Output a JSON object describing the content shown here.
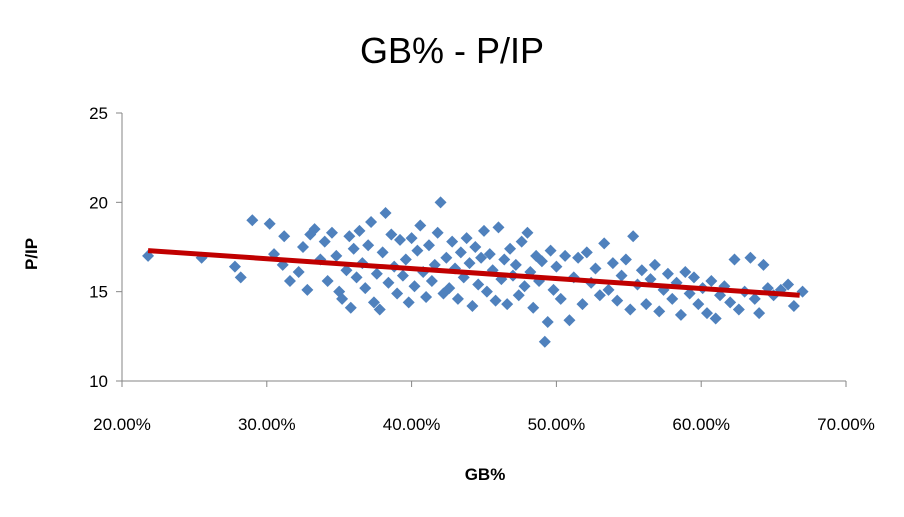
{
  "chart_data": {
    "type": "scatter",
    "title": "GB% - P/IP",
    "xlabel": "GB%",
    "ylabel": "P/IP",
    "xlim": [
      0.2,
      0.7
    ],
    "ylim": [
      10,
      25
    ],
    "x_ticks": [
      0.2,
      0.3,
      0.4,
      0.5,
      0.6,
      0.7
    ],
    "x_tick_labels": [
      "20.00%",
      "30.00%",
      "40.00%",
      "50.00%",
      "60.00%",
      "70.00%"
    ],
    "y_ticks": [
      10,
      15,
      20,
      25
    ],
    "y_tick_labels": [
      "10",
      "15",
      "20",
      "25"
    ],
    "grid": false,
    "legend": "none",
    "colors": {
      "marker": "#4F81BD",
      "trendline": "#C00000"
    },
    "series": [
      {
        "marker": "diamond",
        "points": [
          [
            0.218,
            17.0
          ],
          [
            0.255,
            16.9
          ],
          [
            0.278,
            16.4
          ],
          [
            0.282,
            15.8
          ],
          [
            0.29,
            19.0
          ],
          [
            0.302,
            18.8
          ],
          [
            0.305,
            17.1
          ],
          [
            0.311,
            16.5
          ],
          [
            0.312,
            18.1
          ],
          [
            0.316,
            15.6
          ],
          [
            0.322,
            16.1
          ],
          [
            0.325,
            17.5
          ],
          [
            0.328,
            15.1
          ],
          [
            0.33,
            18.2
          ],
          [
            0.333,
            18.5
          ],
          [
            0.337,
            16.8
          ],
          [
            0.34,
            17.8
          ],
          [
            0.342,
            15.6
          ],
          [
            0.345,
            18.3
          ],
          [
            0.348,
            17.0
          ],
          [
            0.35,
            15.0
          ],
          [
            0.352,
            14.6
          ],
          [
            0.355,
            16.2
          ],
          [
            0.357,
            18.1
          ],
          [
            0.358,
            14.1
          ],
          [
            0.36,
            17.4
          ],
          [
            0.362,
            15.8
          ],
          [
            0.364,
            18.4
          ],
          [
            0.366,
            16.6
          ],
          [
            0.368,
            15.2
          ],
          [
            0.37,
            17.6
          ],
          [
            0.372,
            18.9
          ],
          [
            0.374,
            14.4
          ],
          [
            0.376,
            16.0
          ],
          [
            0.378,
            14.0
          ],
          [
            0.38,
            17.2
          ],
          [
            0.382,
            19.4
          ],
          [
            0.384,
            15.5
          ],
          [
            0.386,
            18.2
          ],
          [
            0.388,
            16.4
          ],
          [
            0.39,
            14.9
          ],
          [
            0.392,
            17.9
          ],
          [
            0.394,
            15.9
          ],
          [
            0.396,
            16.8
          ],
          [
            0.398,
            14.4
          ],
          [
            0.4,
            18.0
          ],
          [
            0.402,
            15.3
          ],
          [
            0.404,
            17.3
          ],
          [
            0.406,
            18.7
          ],
          [
            0.408,
            16.1
          ],
          [
            0.41,
            14.7
          ],
          [
            0.412,
            17.6
          ],
          [
            0.414,
            15.6
          ],
          [
            0.416,
            16.5
          ],
          [
            0.418,
            18.3
          ],
          [
            0.42,
            20.0
          ],
          [
            0.422,
            14.9
          ],
          [
            0.424,
            16.9
          ],
          [
            0.426,
            15.2
          ],
          [
            0.428,
            17.8
          ],
          [
            0.43,
            16.3
          ],
          [
            0.432,
            14.6
          ],
          [
            0.434,
            17.2
          ],
          [
            0.436,
            15.8
          ],
          [
            0.438,
            18.0
          ],
          [
            0.44,
            16.6
          ],
          [
            0.442,
            14.2
          ],
          [
            0.444,
            17.5
          ],
          [
            0.446,
            15.4
          ],
          [
            0.448,
            16.9
          ],
          [
            0.45,
            18.4
          ],
          [
            0.452,
            15.0
          ],
          [
            0.454,
            17.1
          ],
          [
            0.456,
            16.2
          ],
          [
            0.458,
            14.5
          ],
          [
            0.46,
            18.6
          ],
          [
            0.462,
            15.7
          ],
          [
            0.464,
            16.8
          ],
          [
            0.466,
            14.3
          ],
          [
            0.468,
            17.4
          ],
          [
            0.47,
            15.9
          ],
          [
            0.472,
            16.5
          ],
          [
            0.474,
            14.8
          ],
          [
            0.476,
            17.8
          ],
          [
            0.478,
            15.3
          ],
          [
            0.48,
            18.3
          ],
          [
            0.482,
            16.1
          ],
          [
            0.484,
            14.1
          ],
          [
            0.486,
            17.0
          ],
          [
            0.488,
            15.6
          ],
          [
            0.49,
            16.7
          ],
          [
            0.492,
            12.2
          ],
          [
            0.494,
            13.3
          ],
          [
            0.496,
            17.3
          ],
          [
            0.498,
            15.1
          ],
          [
            0.5,
            16.4
          ],
          [
            0.503,
            14.6
          ],
          [
            0.506,
            17.0
          ],
          [
            0.509,
            13.4
          ],
          [
            0.512,
            15.8
          ],
          [
            0.515,
            16.9
          ],
          [
            0.518,
            14.3
          ],
          [
            0.521,
            17.2
          ],
          [
            0.524,
            15.5
          ],
          [
            0.527,
            16.3
          ],
          [
            0.53,
            14.8
          ],
          [
            0.533,
            17.7
          ],
          [
            0.536,
            15.1
          ],
          [
            0.539,
            16.6
          ],
          [
            0.542,
            14.5
          ],
          [
            0.545,
            15.9
          ],
          [
            0.548,
            16.8
          ],
          [
            0.551,
            14.0
          ],
          [
            0.553,
            18.1
          ],
          [
            0.556,
            15.4
          ],
          [
            0.559,
            16.2
          ],
          [
            0.562,
            14.3
          ],
          [
            0.565,
            15.7
          ],
          [
            0.568,
            16.5
          ],
          [
            0.571,
            13.9
          ],
          [
            0.574,
            15.1
          ],
          [
            0.577,
            16.0
          ],
          [
            0.58,
            14.6
          ],
          [
            0.583,
            15.5
          ],
          [
            0.586,
            13.7
          ],
          [
            0.589,
            16.1
          ],
          [
            0.592,
            14.9
          ],
          [
            0.595,
            15.8
          ],
          [
            0.598,
            14.3
          ],
          [
            0.601,
            15.2
          ],
          [
            0.604,
            13.8
          ],
          [
            0.607,
            15.6
          ],
          [
            0.61,
            13.5
          ],
          [
            0.613,
            14.8
          ],
          [
            0.616,
            15.3
          ],
          [
            0.62,
            14.4
          ],
          [
            0.623,
            16.8
          ],
          [
            0.626,
            14.0
          ],
          [
            0.63,
            15.0
          ],
          [
            0.634,
            16.9
          ],
          [
            0.637,
            14.6
          ],
          [
            0.64,
            13.8
          ],
          [
            0.643,
            16.5
          ],
          [
            0.646,
            15.2
          ],
          [
            0.65,
            14.8
          ],
          [
            0.655,
            15.1
          ],
          [
            0.66,
            15.4
          ],
          [
            0.664,
            14.2
          ],
          [
            0.67,
            15.0
          ]
        ]
      }
    ],
    "trendline": {
      "type": "linear",
      "x": [
        0.218,
        0.668
      ],
      "y": [
        17.3,
        14.8
      ]
    }
  }
}
